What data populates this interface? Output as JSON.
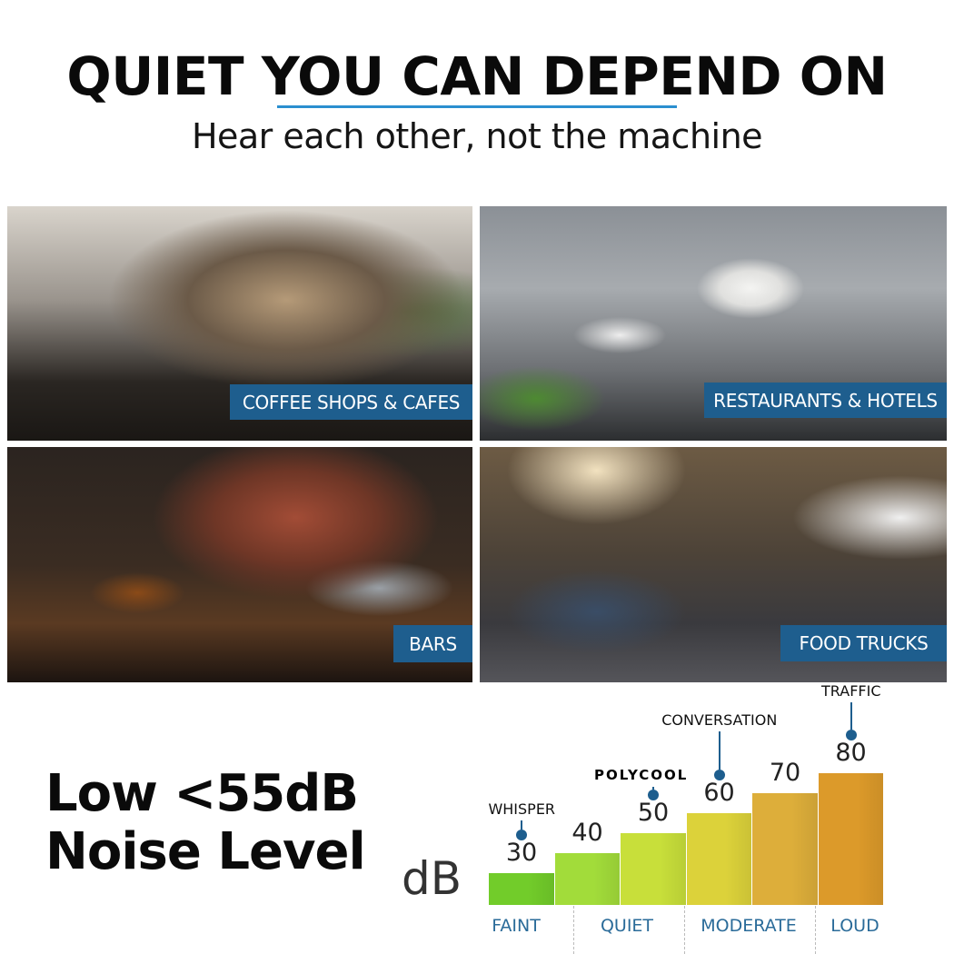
{
  "header": {
    "title": "QUIET YOU CAN DEPEND ON",
    "subtitle": "Hear each other, not the machine",
    "underline_color": "#2a8fcf"
  },
  "photos": [
    {
      "label": "COFFEE SHOPS & CAFES"
    },
    {
      "label": "RESTAURANTS & HOTELS"
    },
    {
      "label": "BARS"
    },
    {
      "label": "FOOD TRUCKS"
    }
  ],
  "tag_color": "#1e5e8e",
  "claim": {
    "line1": "Low ",
    "symbol": "<",
    "value": "55dB",
    "line2": "Noise Level"
  },
  "chart_data": {
    "type": "bar",
    "ylabel": "dB",
    "categories": [
      "30",
      "40",
      "50",
      "60",
      "70",
      "80"
    ],
    "values": [
      30,
      40,
      50,
      60,
      70,
      80
    ],
    "colors": [
      "#72cc2a",
      "#a2dc3a",
      "#c8df3a",
      "#dcd23a",
      "#ddae3a",
      "#dc9a2a"
    ],
    "groups": [
      "FAINT",
      "QUIET",
      "MODERATE",
      "LOUD"
    ],
    "annotations": [
      {
        "label": "WHISPER",
        "value": 30
      },
      {
        "label": "POLYCOOL",
        "value": 50,
        "logo": true
      },
      {
        "label": "CONVERSATION",
        "value": 60
      },
      {
        "label": "TRAFFIC",
        "value": 80
      }
    ]
  }
}
